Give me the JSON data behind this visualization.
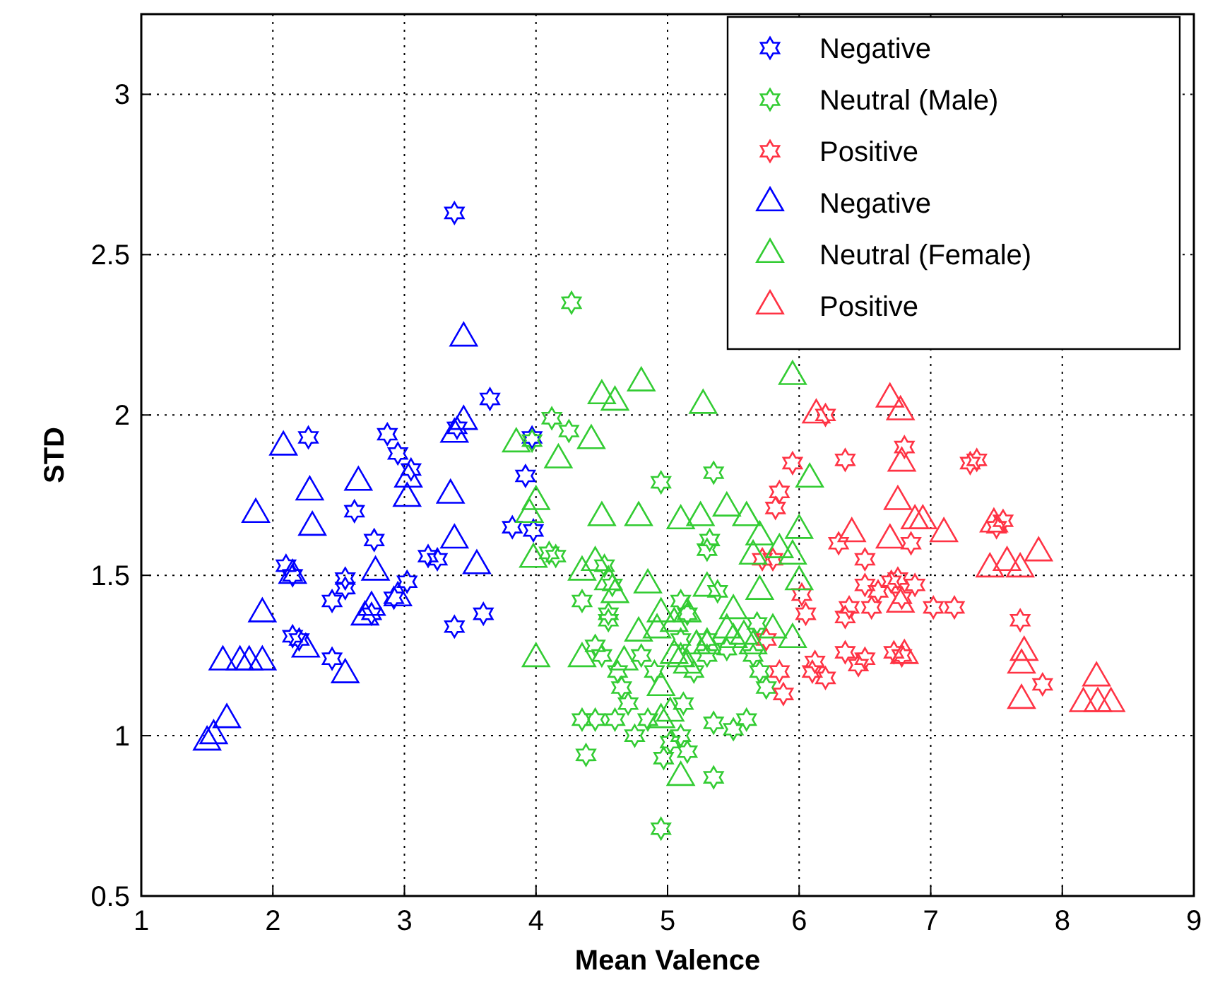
{
  "chart_data": {
    "type": "scatter",
    "xlabel": "Mean Valence",
    "ylabel": "STD",
    "xlim": [
      1,
      9
    ],
    "xticks": [
      1,
      2,
      3,
      4,
      5,
      6,
      7,
      8,
      9
    ],
    "ylim": [
      0.5,
      3.25
    ],
    "yticks": [
      0.5,
      1,
      1.5,
      2,
      2.5,
      3
    ],
    "grid": true,
    "legend": "top right",
    "series": [
      {
        "name": "Negative",
        "color": "#0000ff",
        "marker": "star",
        "x": [
          3.38,
          2.27,
          2.87,
          2.95,
          3.05,
          3.65,
          3.97,
          3.92,
          2.62,
          2.1,
          2.15,
          2.77,
          3.02,
          3.18,
          3.25,
          2.55,
          2.55,
          2.45,
          2.92,
          2.15,
          2.2,
          2.45,
          2.75,
          3.38,
          3.6,
          3.82,
          3.98,
          3.4
        ],
        "values": [
          2.63,
          1.93,
          1.94,
          1.88,
          1.83,
          2.05,
          1.93,
          1.81,
          1.7,
          1.53,
          1.5,
          1.61,
          1.48,
          1.56,
          1.55,
          1.49,
          1.46,
          1.42,
          1.43,
          1.31,
          1.3,
          1.24,
          1.38,
          1.34,
          1.38,
          1.65,
          1.64,
          1.96
        ]
      },
      {
        "name": "Neutral (Male)",
        "color": "#33cc33",
        "marker": "star",
        "x": [
          4.27,
          4.12,
          4.25,
          3.97,
          4.95,
          5.35,
          5.32,
          5.3,
          4.1,
          4.15,
          4.52,
          4.58,
          4.35,
          4.55,
          4.55,
          4.45,
          4.5,
          4.62,
          4.65,
          4.35,
          4.45,
          4.6,
          4.7,
          4.85,
          4.75,
          4.97,
          5.02,
          5.1,
          5.15,
          5.35,
          5.35,
          4.38,
          4.95,
          5.38,
          5.3,
          5.2,
          5.15,
          5.1,
          5.3,
          5.12,
          4.9,
          4.8,
          5.1,
          5.45,
          5.5,
          5.6,
          5.68,
          5.65,
          5.7,
          5.75
        ],
        "values": [
          2.35,
          1.99,
          1.95,
          1.92,
          1.79,
          1.82,
          1.61,
          1.58,
          1.57,
          1.56,
          1.53,
          1.47,
          1.42,
          1.38,
          1.36,
          1.28,
          1.25,
          1.2,
          1.15,
          1.05,
          1.05,
          1.05,
          1.1,
          1.05,
          1.0,
          0.93,
          0.98,
          1.0,
          0.95,
          0.87,
          1.04,
          0.94,
          0.71,
          1.45,
          1.3,
          1.2,
          1.38,
          1.42,
          1.25,
          1.1,
          1.2,
          1.25,
          1.3,
          1.27,
          1.02,
          1.05,
          1.35,
          1.25,
          1.2,
          1.15
        ]
      },
      {
        "name": "Positive",
        "color": "#ff3344",
        "marker": "star",
        "x": [
          5.82,
          5.85,
          5.95,
          5.72,
          5.8,
          5.75,
          5.85,
          5.88,
          6.2,
          6.35,
          6.3,
          6.35,
          6.35,
          6.45,
          6.5,
          6.5,
          6.6,
          6.75,
          6.88,
          6.78,
          6.85,
          6.72,
          6.78,
          6.7,
          6.8,
          6.5,
          7.02,
          7.18,
          7.3,
          7.35,
          7.5,
          7.55,
          7.68,
          7.85,
          6.12,
          6.1,
          6.2,
          6.02,
          6.05,
          6.38,
          6.55
        ],
        "values": [
          1.71,
          1.76,
          1.85,
          1.55,
          1.55,
          1.3,
          1.2,
          1.13,
          2.0,
          1.86,
          1.6,
          1.37,
          1.26,
          1.22,
          1.24,
          1.47,
          1.45,
          1.49,
          1.47,
          1.43,
          1.6,
          1.26,
          1.25,
          1.48,
          1.9,
          1.55,
          1.4,
          1.4,
          1.85,
          1.86,
          1.65,
          1.67,
          1.36,
          1.16,
          1.23,
          1.2,
          1.18,
          1.44,
          1.38,
          1.4,
          1.4
        ]
      },
      {
        "name": "Negative",
        "color": "#0000ff",
        "marker": "triangle",
        "x": [
          1.5,
          1.55,
          1.65,
          1.62,
          1.75,
          1.82,
          1.92,
          1.87,
          1.92,
          2.08,
          2.15,
          2.25,
          2.28,
          2.3,
          2.55,
          2.65,
          2.7,
          2.75,
          2.78,
          2.95,
          3.02,
          3.03,
          3.35,
          3.38,
          3.38,
          3.45,
          3.45,
          3.55
        ],
        "values": [
          0.98,
          1.0,
          1.05,
          1.23,
          1.23,
          1.23,
          1.23,
          1.69,
          1.38,
          1.9,
          1.5,
          1.27,
          1.76,
          1.65,
          1.19,
          1.79,
          1.37,
          1.4,
          1.51,
          1.43,
          1.74,
          1.8,
          1.75,
          1.61,
          1.94,
          1.98,
          2.24,
          1.53
        ]
      },
      {
        "name": "Neutral (Female)",
        "color": "#33cc33",
        "marker": "triangle",
        "x": [
          3.85,
          4.0,
          3.95,
          3.98,
          4.0,
          4.17,
          4.42,
          4.5,
          4.6,
          4.8,
          5.27,
          4.5,
          4.78,
          4.35,
          4.45,
          4.55,
          4.6,
          4.35,
          4.78,
          4.85,
          4.95,
          4.92,
          5.05,
          5.15,
          5.22,
          5.3,
          4.67,
          4.95,
          5.05,
          5.1,
          5.15,
          4.95,
          5.02,
          5.1,
          5.5,
          5.45,
          5.58,
          5.65,
          5.3,
          5.1,
          5.25,
          5.45,
          5.6,
          5.7,
          5.65,
          5.85,
          5.95,
          6.0,
          6.08,
          6.0,
          5.95,
          5.95,
          5.8,
          5.7,
          5.5
        ],
        "values": [
          1.91,
          1.73,
          1.69,
          1.55,
          1.24,
          1.86,
          1.92,
          2.06,
          2.04,
          2.1,
          2.03,
          1.68,
          1.68,
          1.51,
          1.54,
          1.48,
          1.44,
          1.24,
          1.32,
          1.47,
          1.38,
          1.33,
          1.35,
          1.38,
          1.28,
          1.28,
          1.23,
          1.15,
          1.25,
          1.24,
          1.22,
          1.05,
          1.07,
          0.87,
          1.39,
          1.33,
          1.31,
          1.28,
          1.46,
          1.67,
          1.68,
          1.71,
          1.68,
          1.62,
          1.56,
          1.58,
          1.56,
          1.48,
          1.8,
          1.64,
          2.12,
          1.3,
          1.33,
          1.45,
          1.3
        ]
      },
      {
        "name": "Positive",
        "color": "#ff3344",
        "marker": "triangle",
        "x": [
          6.13,
          6.69,
          6.77,
          6.78,
          6.75,
          6.4,
          6.69,
          6.88,
          6.94,
          7.1,
          7.48,
          7.45,
          7.58,
          7.68,
          7.82,
          6.77,
          6.8,
          7.71,
          7.69,
          7.69,
          8.26,
          8.16,
          8.27,
          8.37
        ],
        "values": [
          2.0,
          2.05,
          2.01,
          1.85,
          1.73,
          1.63,
          1.61,
          1.67,
          1.67,
          1.63,
          1.66,
          1.52,
          1.54,
          1.52,
          1.57,
          1.41,
          1.25,
          1.26,
          1.22,
          1.11,
          1.18,
          1.1,
          1.1,
          1.1
        ]
      }
    ]
  }
}
